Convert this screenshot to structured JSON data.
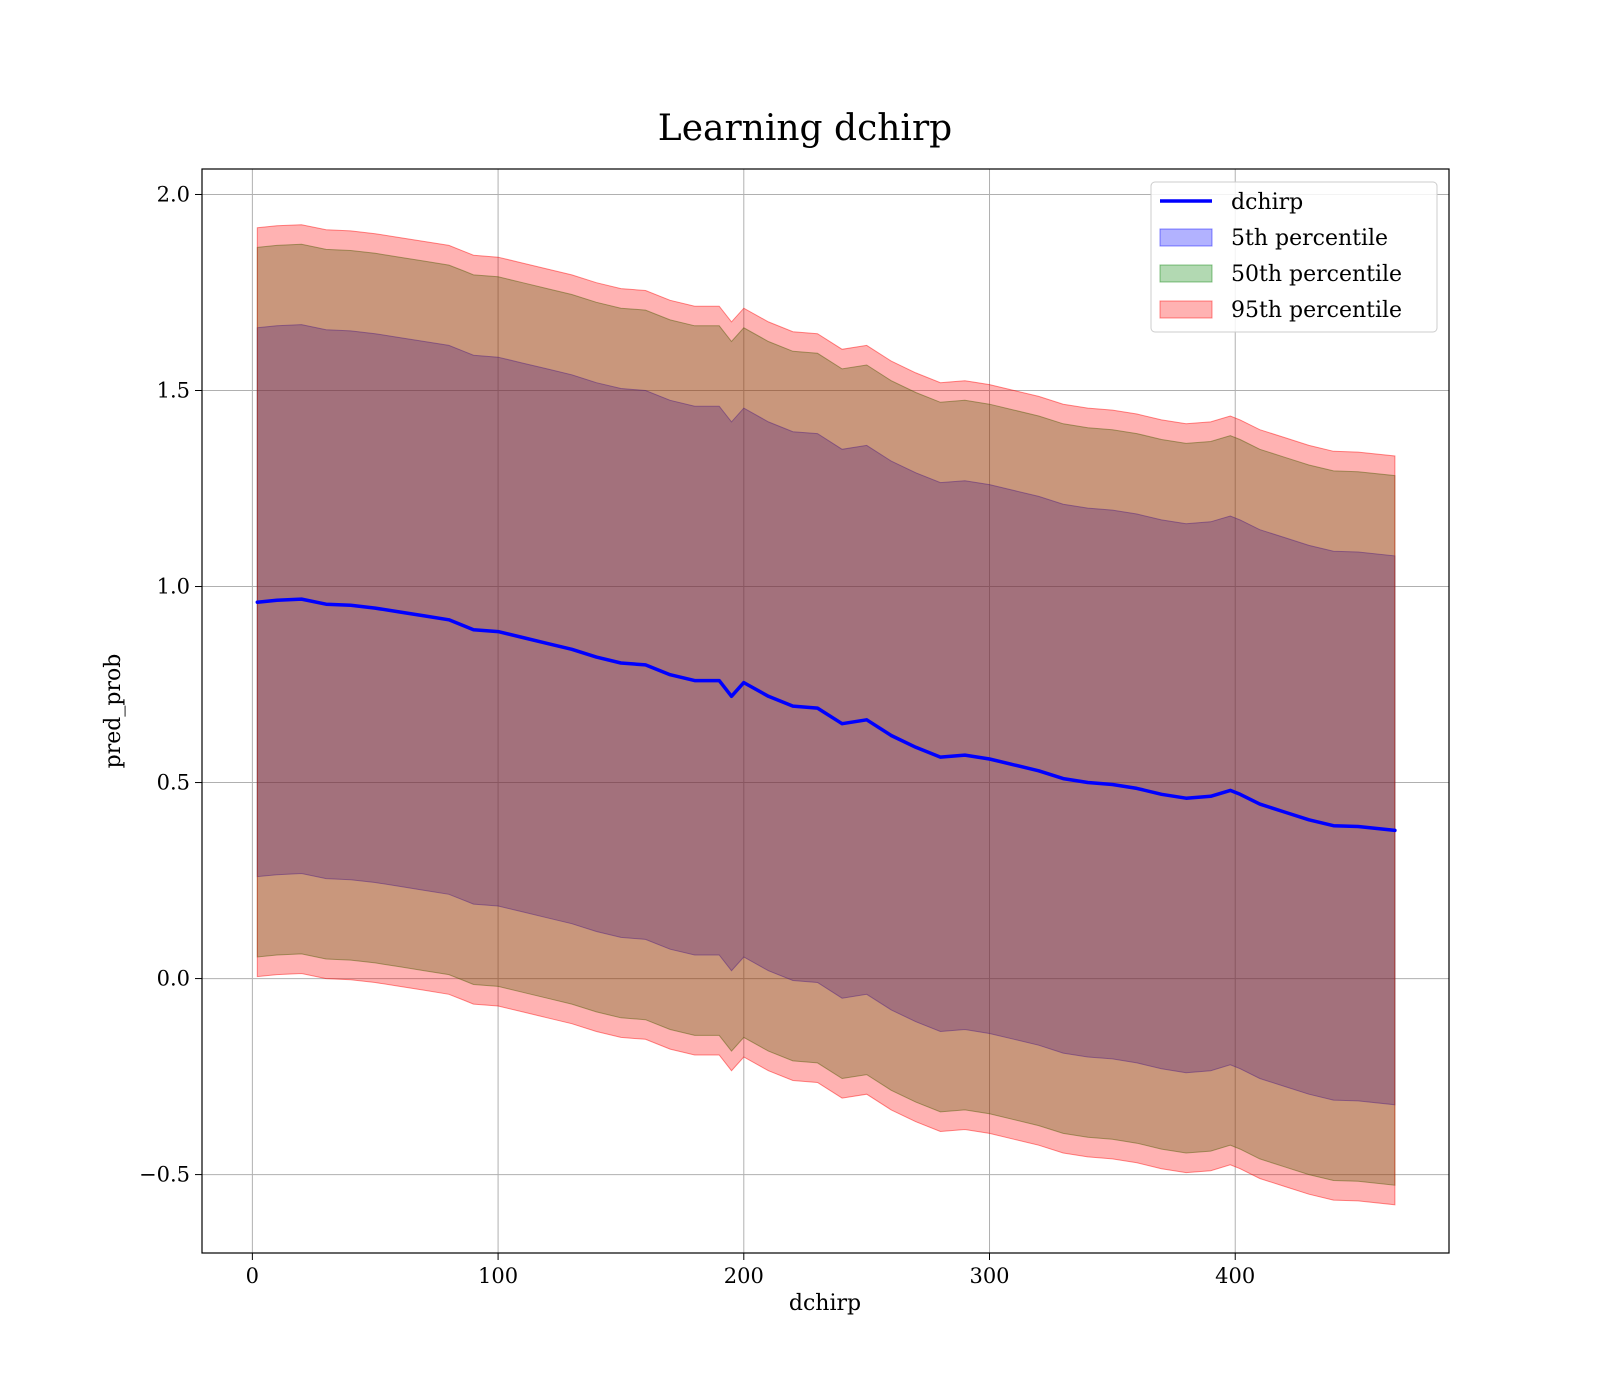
{
  "chart_data": {
    "type": "line",
    "title": "Learning dchirp",
    "xlabel": "dchirp",
    "ylabel": "pred_prob",
    "xlim": [
      -20.5,
      487
    ],
    "ylim": [
      -0.7,
      2.065
    ],
    "xticks": [
      0,
      100,
      200,
      300,
      400
    ],
    "xtick_labels": [
      "0",
      "100",
      "200",
      "300",
      "400"
    ],
    "yticks": [
      -0.5,
      0.0,
      0.5,
      1.0,
      1.5,
      2.0
    ],
    "ytick_labels": [
      "−0.5",
      "0.0",
      "0.5",
      "1.0",
      "1.5",
      "2.0"
    ],
    "grid": true,
    "legend_position": "top-right",
    "x": [
      2,
      10,
      20,
      30,
      40,
      50,
      60,
      70,
      80,
      86,
      90,
      100,
      110,
      120,
      130,
      140,
      150,
      160,
      170,
      180,
      190,
      195,
      200,
      210,
      220,
      230,
      240,
      250,
      260,
      270,
      280,
      290,
      300,
      310,
      320,
      330,
      340,
      350,
      360,
      370,
      380,
      390,
      398,
      402,
      410,
      420,
      430,
      440,
      450,
      465
    ],
    "line": {
      "name": "dchirp",
      "color": "#0000ff",
      "values": [
        0.96,
        0.965,
        0.968,
        0.955,
        0.952,
        0.945,
        0.935,
        0.925,
        0.915,
        0.9,
        0.89,
        0.885,
        0.87,
        0.855,
        0.84,
        0.82,
        0.805,
        0.8,
        0.775,
        0.76,
        0.76,
        0.72,
        0.755,
        0.72,
        0.695,
        0.69,
        0.65,
        0.66,
        0.62,
        0.59,
        0.565,
        0.57,
        0.56,
        0.545,
        0.53,
        0.51,
        0.5,
        0.495,
        0.485,
        0.47,
        0.46,
        0.465,
        0.48,
        0.47,
        0.445,
        0.425,
        0.405,
        0.39,
        0.388,
        0.378
      ]
    },
    "bands": [
      {
        "name": "5th percentile",
        "color": "#0000ff",
        "opacity": 0.3,
        "upper": [
          1.66,
          1.665,
          1.668,
          1.655,
          1.652,
          1.645,
          1.635,
          1.625,
          1.615,
          1.6,
          1.59,
          1.585,
          1.57,
          1.555,
          1.54,
          1.52,
          1.505,
          1.5,
          1.475,
          1.46,
          1.46,
          1.42,
          1.455,
          1.42,
          1.395,
          1.39,
          1.35,
          1.36,
          1.32,
          1.29,
          1.265,
          1.27,
          1.26,
          1.245,
          1.23,
          1.21,
          1.2,
          1.195,
          1.185,
          1.17,
          1.16,
          1.165,
          1.18,
          1.17,
          1.145,
          1.125,
          1.105,
          1.09,
          1.088,
          1.078
        ],
        "lower": [
          0.26,
          0.265,
          0.268,
          0.255,
          0.252,
          0.245,
          0.235,
          0.225,
          0.215,
          0.2,
          0.19,
          0.185,
          0.17,
          0.155,
          0.14,
          0.12,
          0.105,
          0.1,
          0.075,
          0.06,
          0.06,
          0.02,
          0.055,
          0.02,
          -0.005,
          -0.01,
          -0.05,
          -0.04,
          -0.08,
          -0.11,
          -0.135,
          -0.13,
          -0.14,
          -0.155,
          -0.17,
          -0.19,
          -0.2,
          -0.205,
          -0.215,
          -0.23,
          -0.24,
          -0.235,
          -0.22,
          -0.23,
          -0.255,
          -0.275,
          -0.295,
          -0.31,
          -0.312,
          -0.322
        ]
      },
      {
        "name": "50th percentile",
        "color": "#008000",
        "opacity": 0.3,
        "upper": [
          1.865,
          1.87,
          1.873,
          1.86,
          1.857,
          1.85,
          1.84,
          1.83,
          1.82,
          1.805,
          1.795,
          1.79,
          1.775,
          1.76,
          1.745,
          1.725,
          1.71,
          1.705,
          1.68,
          1.665,
          1.665,
          1.625,
          1.66,
          1.625,
          1.6,
          1.595,
          1.555,
          1.565,
          1.525,
          1.495,
          1.47,
          1.475,
          1.465,
          1.45,
          1.435,
          1.415,
          1.405,
          1.4,
          1.39,
          1.375,
          1.365,
          1.37,
          1.385,
          1.375,
          1.35,
          1.33,
          1.31,
          1.295,
          1.293,
          1.283
        ],
        "lower": [
          0.055,
          0.06,
          0.063,
          0.05,
          0.047,
          0.04,
          0.03,
          0.02,
          0.01,
          -0.005,
          -0.015,
          -0.02,
          -0.035,
          -0.05,
          -0.065,
          -0.085,
          -0.1,
          -0.105,
          -0.13,
          -0.145,
          -0.145,
          -0.185,
          -0.15,
          -0.185,
          -0.21,
          -0.215,
          -0.255,
          -0.245,
          -0.285,
          -0.315,
          -0.34,
          -0.335,
          -0.345,
          -0.36,
          -0.375,
          -0.395,
          -0.405,
          -0.41,
          -0.42,
          -0.435,
          -0.445,
          -0.44,
          -0.425,
          -0.435,
          -0.46,
          -0.48,
          -0.5,
          -0.515,
          -0.517,
          -0.527
        ]
      },
      {
        "name": "95th percentile",
        "color": "#ff0000",
        "opacity": 0.3,
        "upper": [
          1.915,
          1.92,
          1.923,
          1.91,
          1.907,
          1.9,
          1.89,
          1.88,
          1.87,
          1.855,
          1.845,
          1.84,
          1.825,
          1.81,
          1.795,
          1.775,
          1.76,
          1.755,
          1.73,
          1.715,
          1.715,
          1.675,
          1.71,
          1.675,
          1.65,
          1.645,
          1.605,
          1.615,
          1.575,
          1.545,
          1.52,
          1.525,
          1.515,
          1.5,
          1.485,
          1.465,
          1.455,
          1.45,
          1.44,
          1.425,
          1.415,
          1.42,
          1.435,
          1.425,
          1.4,
          1.38,
          1.36,
          1.345,
          1.343,
          1.333
        ],
        "lower": [
          0.005,
          0.01,
          0.013,
          0.0,
          -0.003,
          -0.01,
          -0.02,
          -0.03,
          -0.04,
          -0.055,
          -0.065,
          -0.07,
          -0.085,
          -0.1,
          -0.115,
          -0.135,
          -0.15,
          -0.155,
          -0.18,
          -0.195,
          -0.195,
          -0.235,
          -0.2,
          -0.235,
          -0.26,
          -0.265,
          -0.305,
          -0.295,
          -0.335,
          -0.365,
          -0.39,
          -0.385,
          -0.395,
          -0.41,
          -0.425,
          -0.445,
          -0.455,
          -0.46,
          -0.47,
          -0.485,
          -0.495,
          -0.49,
          -0.475,
          -0.485,
          -0.51,
          -0.53,
          -0.55,
          -0.565,
          -0.567,
          -0.577
        ]
      }
    ]
  }
}
